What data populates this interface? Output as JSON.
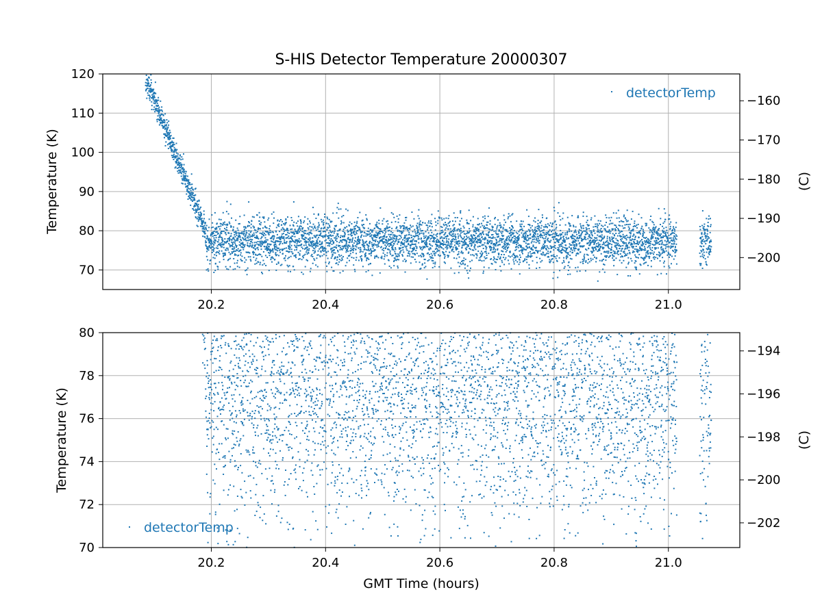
{
  "chart_data": {
    "title": "S-HIS Detector Temperature 20000307",
    "type": "scatter",
    "series_name": "detectorTemp",
    "color": "#1f77b4",
    "data_model": {
      "x_start": 20.085,
      "x_ramp_end": 20.19,
      "x_end": 21.015,
      "gap": [
        21.015,
        21.055
      ],
      "x_final_segment": [
        21.055,
        21.075
      ],
      "start_temp": 119,
      "steady_mean": 77.3,
      "steady_spread": 3.2,
      "total_points": 5200
    },
    "plots": [
      {
        "ylabel": "Temperature (K)",
        "y2label": "(C)",
        "xlim": [
          20.01,
          21.125
        ],
        "ylim": [
          65,
          120
        ],
        "yticks": [
          "70",
          "80",
          "90",
          "100",
          "110",
          "120"
        ],
        "y2ticks": [
          "−200",
          "−190",
          "−180",
          "−170",
          "−160"
        ],
        "xticks": [
          "20.2",
          "20.4",
          "20.6",
          "20.8",
          "21.0"
        ],
        "xlabel": "",
        "legend": {
          "label": "detectorTemp",
          "location": "upper-right"
        },
        "grid": true
      },
      {
        "ylabel": "Temperature (K)",
        "y2label": "(C)",
        "xlim": [
          20.01,
          21.125
        ],
        "ylim": [
          70,
          80
        ],
        "yticks": [
          "70",
          "72",
          "74",
          "76",
          "78",
          "80"
        ],
        "y2ticks": [
          "−202",
          "−200",
          "−198",
          "−196",
          "−194"
        ],
        "xticks": [
          "20.2",
          "20.4",
          "20.6",
          "20.8",
          "21.0"
        ],
        "xlabel": "GMT Time (hours)",
        "legend": {
          "label": "detectorTemp",
          "location": "lower-left"
        },
        "grid": true
      }
    ]
  }
}
